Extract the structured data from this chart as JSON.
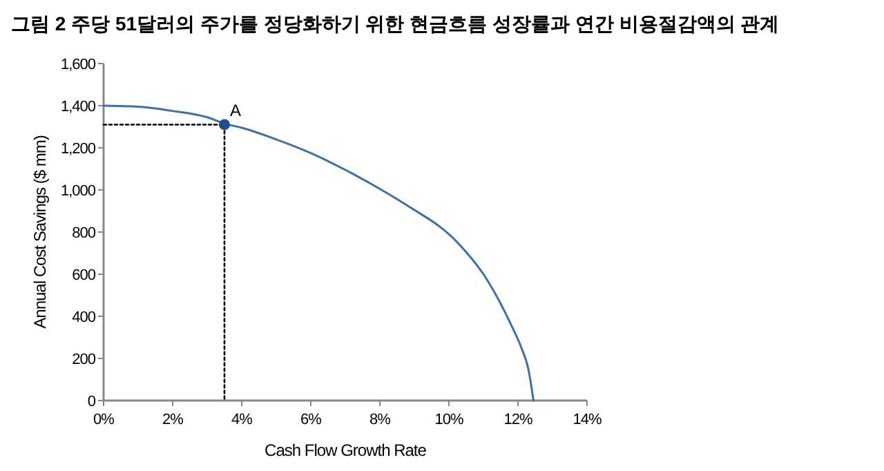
{
  "chart_data": {
    "type": "line",
    "title": "그림 2 주당 51달러의 주가를 정당화하기 위한 현금흐름 성장률과 연간 비용절감액의 관계",
    "xlabel": "Cash Flow Growth Rate",
    "ylabel": "Annual Cost Savings ($ mm)",
    "xlim": [
      0,
      14
    ],
    "xticks": [
      {
        "value": 0,
        "label": "0%"
      },
      {
        "value": 2,
        "label": "2%"
      },
      {
        "value": 4,
        "label": "4%"
      },
      {
        "value": 6,
        "label": "6%"
      },
      {
        "value": 8,
        "label": "8%"
      },
      {
        "value": 10,
        "label": "10%"
      },
      {
        "value": 12,
        "label": "12%"
      },
      {
        "value": 14,
        "label": "14%"
      }
    ],
    "ylim": [
      0,
      1600
    ],
    "yticks": [
      0,
      200,
      400,
      600,
      800,
      {
        "value": 1000,
        "label": "1,000"
      },
      {
        "value": 1200,
        "label": "1,200"
      },
      {
        "value": 1400,
        "label": "1,400"
      },
      {
        "value": 1600,
        "label": "1,600"
      }
    ],
    "grid": false,
    "series": [
      {
        "color": "#3d6fa8",
        "line_style": "solid",
        "x": [
          0,
          1,
          2,
          3,
          3.5,
          4,
          5,
          6,
          7,
          8,
          9,
          9.7,
          10,
          10.5,
          11,
          11.4,
          11.8,
          12.1,
          12.3,
          12.45
        ],
        "values": [
          1400,
          1395,
          1375,
          1345,
          1315,
          1295,
          1240,
          1175,
          1095,
          1005,
          905,
          830,
          790,
          705,
          600,
          490,
          360,
          250,
          150,
          0
        ]
      },
      {
        "color": "#000000",
        "line_style": "dotted",
        "x": [
          0,
          3.5,
          3.5
        ],
        "values": [
          1310,
          1310,
          0
        ]
      },
      {
        "type": "scatter",
        "color": "#1f4e8c",
        "marker": "circle",
        "x": [
          3.5
        ],
        "values": [
          1310
        ]
      }
    ],
    "annotations": [
      {
        "text": "A",
        "x": 3.5,
        "y": 1310
      }
    ]
  }
}
